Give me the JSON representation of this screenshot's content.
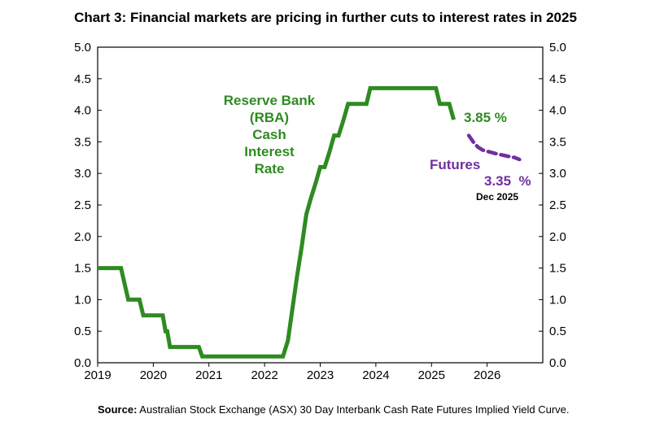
{
  "chart_data": {
    "type": "line",
    "title": "Chart 3: Financial markets are pricing in further cuts to interest rates in 2025",
    "xlim": [
      2019,
      2027
    ],
    "ylim": [
      0,
      5
    ],
    "x_ticks": [
      "2019",
      "2020",
      "2021",
      "2022",
      "2023",
      "2024",
      "2025",
      "2026"
    ],
    "y_ticks": [
      "0.0",
      "0.5",
      "1.0",
      "1.5",
      "2.0",
      "2.5",
      "3.0",
      "3.5",
      "4.0",
      "4.5",
      "5.0"
    ],
    "grid": false,
    "series": [
      {
        "name": "Reserve Bank (RBA) Cash Interest Rate",
        "color": "#2e8b21",
        "style": "solid",
        "points": [
          [
            2019.0,
            1.5
          ],
          [
            2019.42,
            1.5
          ],
          [
            2019.55,
            1.0
          ],
          [
            2019.75,
            1.0
          ],
          [
            2019.82,
            0.75
          ],
          [
            2020.17,
            0.75
          ],
          [
            2020.22,
            0.5
          ],
          [
            2020.25,
            0.5
          ],
          [
            2020.3,
            0.25
          ],
          [
            2020.82,
            0.25
          ],
          [
            2020.88,
            0.1
          ],
          [
            2022.33,
            0.1
          ],
          [
            2022.42,
            0.35
          ],
          [
            2022.5,
            0.85
          ],
          [
            2022.58,
            1.35
          ],
          [
            2022.67,
            1.85
          ],
          [
            2022.75,
            2.35
          ],
          [
            2022.83,
            2.6
          ],
          [
            2022.92,
            2.85
          ],
          [
            2023.0,
            3.1
          ],
          [
            2023.08,
            3.1
          ],
          [
            2023.17,
            3.35
          ],
          [
            2023.25,
            3.6
          ],
          [
            2023.33,
            3.6
          ],
          [
            2023.42,
            3.85
          ],
          [
            2023.5,
            4.1
          ],
          [
            2023.83,
            4.1
          ],
          [
            2023.9,
            4.35
          ],
          [
            2025.08,
            4.35
          ],
          [
            2025.15,
            4.1
          ],
          [
            2025.32,
            4.1
          ],
          [
            2025.4,
            3.85
          ]
        ]
      },
      {
        "name": "Futures",
        "color": "#7030a0",
        "style": "dashed",
        "points": [
          [
            2025.67,
            3.6
          ],
          [
            2025.75,
            3.5
          ],
          [
            2025.83,
            3.42
          ],
          [
            2025.92,
            3.37
          ],
          [
            2026.0,
            3.35
          ],
          [
            2026.17,
            3.31
          ],
          [
            2026.33,
            3.28
          ],
          [
            2026.5,
            3.25
          ],
          [
            2026.58,
            3.22
          ]
        ]
      }
    ],
    "annotations": {
      "rba_label": [
        "Reserve Bank",
        "(RBA)",
        "Cash",
        "Interest",
        "Rate"
      ],
      "rba_value": "3.85 %",
      "futures_label": "Futures",
      "futures_value": "3.35  %",
      "futures_date": "Dec 2025"
    },
    "source_bold": "Source:",
    "source_text": " Australian Stock Exchange (ASX) 30 Day Interbank Cash Rate Futures Implied Yield Curve."
  }
}
